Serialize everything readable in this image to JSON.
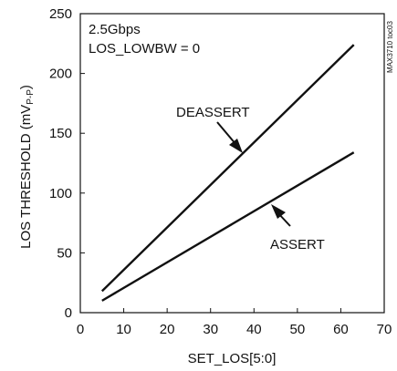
{
  "chart_data": {
    "type": "line",
    "xlabel": "SET_LOS[5:0]",
    "ylabel_main": "LOS THRESHOLD (mV",
    "ylabel_sub": "P-P",
    "ylabel_close": ")",
    "xlim": [
      0,
      70
    ],
    "ylim": [
      0,
      250
    ],
    "xticks": [
      0,
      10,
      20,
      30,
      40,
      50,
      60,
      70
    ],
    "yticks": [
      0,
      50,
      100,
      150,
      200,
      250
    ],
    "grid": false,
    "annotation_lines": [
      "2.5Gbps",
      "LOS_LOWBW = 0"
    ],
    "side_code": "MAX3710 toc03",
    "series": [
      {
        "name": "DEASSERT",
        "x": [
          5,
          63
        ],
        "y": [
          18,
          224
        ],
        "color": "#111111"
      },
      {
        "name": "ASSERT",
        "x": [
          5,
          63
        ],
        "y": [
          10,
          134
        ],
        "color": "#111111"
      }
    ]
  }
}
